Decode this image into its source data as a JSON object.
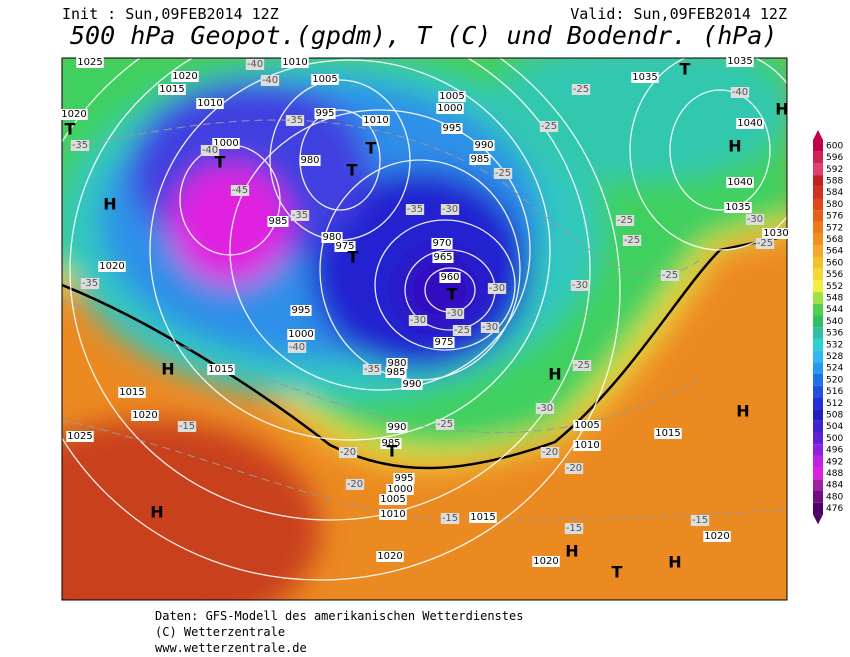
{
  "header": {
    "init": "Init : Sun,09FEB2014 12Z",
    "valid": "Valid: Sun,09FEB2014 12Z",
    "title": "500 hPa Geopot.(gpdm), T (C) und Bodendr. (hPa)"
  },
  "legend": {
    "levels": [
      600,
      596,
      592,
      588,
      584,
      580,
      576,
      572,
      568,
      564,
      560,
      556,
      552,
      548,
      544,
      540,
      536,
      532,
      528,
      524,
      520,
      516,
      512,
      508,
      504,
      500,
      496,
      492,
      488,
      484,
      480,
      476
    ]
  },
  "map": {
    "pressure_labels": [
      1025,
      1020,
      1015,
      1010,
      1005,
      1010,
      995,
      1010,
      1005,
      1000,
      995,
      990,
      985,
      980,
      1000,
      985,
      980,
      975,
      970,
      965,
      960,
      975,
      980,
      985,
      990,
      995,
      1000,
      1015,
      1015,
      1020,
      1025,
      990,
      985,
      995,
      1000,
      1005,
      1010,
      1015,
      1020,
      1020,
      1020,
      1005,
      1010,
      1015,
      1035,
      1035,
      1040,
      1040,
      1035,
      1030,
      1020,
      1020
    ],
    "temperature_labels": [
      -40,
      -40,
      -35,
      -35,
      -40,
      -45,
      -35,
      -35,
      -30,
      -30,
      -30,
      -30,
      -25,
      -30,
      -25,
      -25,
      -25,
      -30,
      -25,
      -25,
      -25,
      -25,
      -30,
      -25,
      -20,
      -20,
      -15,
      -15,
      -15,
      -15,
      -20,
      -20,
      -25,
      -30,
      -40,
      -35,
      -40,
      -35
    ],
    "highs": [
      "H",
      "H",
      "H",
      "H",
      "H",
      "H",
      "H",
      "H",
      "H"
    ],
    "lows": [
      "T",
      "T",
      "T",
      "T",
      "T",
      "T",
      "T",
      "T",
      "T"
    ]
  },
  "footer": {
    "line1": "Daten: GFS-Modell des amerikanischen Wetterdienstes",
    "line2": "(C) Wetterzentrale",
    "line3": "www.wetterzentrale.de"
  }
}
